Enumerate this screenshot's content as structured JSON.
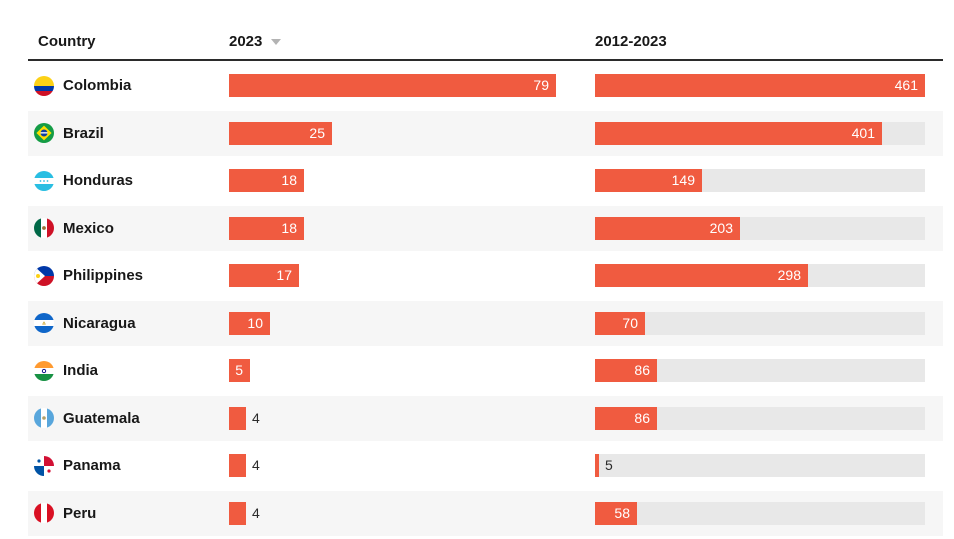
{
  "colors": {
    "bar": "#f05b40",
    "bar_track": "#e8e8e8",
    "row_stripe": "#f6f6f6",
    "header_rule": "#2b2b2b",
    "text": "#181818",
    "value_inside": "#ffffff",
    "value_outside": "#2b2b2b",
    "sort_arrow": "#b3b3b3"
  },
  "table": {
    "columns": [
      {
        "label": "Country"
      },
      {
        "label": "2023",
        "sort_icon": "sort-desc-icon"
      },
      {
        "label": "2012-2023"
      }
    ],
    "rows": [
      {
        "country": "Colombia",
        "flag": "flag-colombia-icon",
        "v2023": 79,
        "v2012_2023": 461
      },
      {
        "country": "Brazil",
        "flag": "flag-brazil-icon",
        "v2023": 25,
        "v2012_2023": 401
      },
      {
        "country": "Honduras",
        "flag": "flag-honduras-icon",
        "v2023": 18,
        "v2012_2023": 149
      },
      {
        "country": "Mexico",
        "flag": "flag-mexico-icon",
        "v2023": 18,
        "v2012_2023": 203
      },
      {
        "country": "Philippines",
        "flag": "flag-philippines-icon",
        "v2023": 17,
        "v2012_2023": 298
      },
      {
        "country": "Nicaragua",
        "flag": "flag-nicaragua-icon",
        "v2023": 10,
        "v2012_2023": 70
      },
      {
        "country": "India",
        "flag": "flag-india-icon",
        "v2023": 5,
        "v2012_2023": 86
      },
      {
        "country": "Guatemala",
        "flag": "flag-guatemala-icon",
        "v2023": 4,
        "v2012_2023": 86
      },
      {
        "country": "Panama",
        "flag": "flag-panama-icon",
        "v2023": 4,
        "v2012_2023": 5
      },
      {
        "country": "Peru",
        "flag": "flag-peru-icon",
        "v2023": 4,
        "v2012_2023": 58
      }
    ]
  },
  "chart_data": {
    "type": "bar",
    "orientation": "horizontal",
    "categories": [
      "Colombia",
      "Brazil",
      "Honduras",
      "Mexico",
      "Philippines",
      "Nicaragua",
      "India",
      "Guatemala",
      "Panama",
      "Peru"
    ],
    "series": [
      {
        "name": "2023",
        "values": [
          79,
          25,
          18,
          18,
          17,
          10,
          5,
          4,
          4,
          4
        ]
      },
      {
        "name": "2012-2023",
        "values": [
          461,
          401,
          149,
          203,
          298,
          70,
          86,
          86,
          5,
          58
        ]
      }
    ],
    "sorted_by": "2023 descending",
    "xlim_2023": [
      0,
      79
    ],
    "xlim_2012_2023": [
      0,
      461
    ],
    "value_labels": "on bars",
    "grid": false,
    "legend": "none"
  }
}
